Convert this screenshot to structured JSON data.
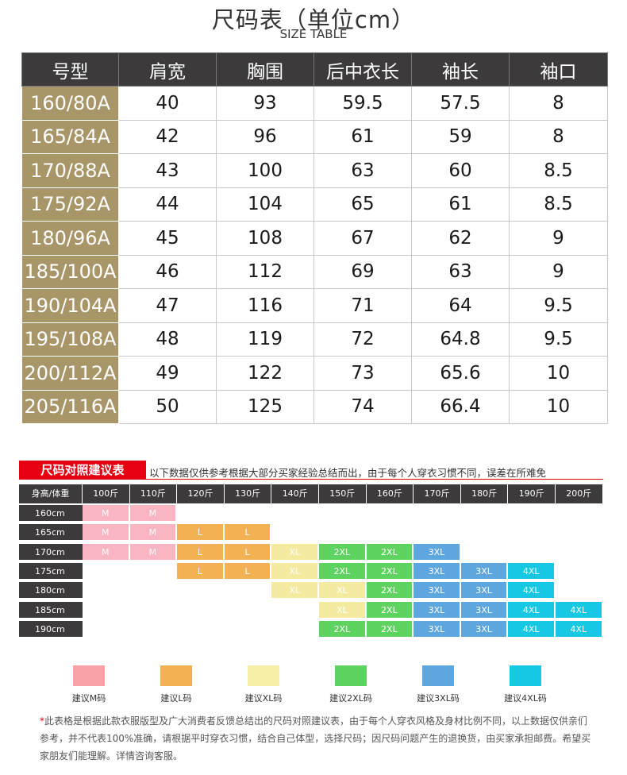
{
  "header": {
    "title": "尺码表（单位cm）",
    "subtitle": "SIZE TABLE"
  },
  "size_table": {
    "columns": [
      "号型",
      "肩宽",
      "胸围",
      "后中衣长",
      "袖长",
      "袖口"
    ],
    "rows": [
      [
        "160/80A",
        "40",
        "93",
        "59.5",
        "57.5",
        "8"
      ],
      [
        "165/84A",
        "42",
        "96",
        "61",
        "59",
        "8"
      ],
      [
        "170/88A",
        "43",
        "100",
        "63",
        "60",
        "8.5"
      ],
      [
        "175/92A",
        "44",
        "104",
        "65",
        "61",
        "8.5"
      ],
      [
        "180/96A",
        "45",
        "108",
        "67",
        "62",
        "9"
      ],
      [
        "185/100A",
        "46",
        "112",
        "69",
        "63",
        "9"
      ],
      [
        "190/104A",
        "47",
        "116",
        "71",
        "64",
        "9.5"
      ],
      [
        "195/108A",
        "48",
        "119",
        "72",
        "64.8",
        "9.5"
      ],
      [
        "200/112A",
        "49",
        "122",
        "73",
        "65.6",
        "10"
      ],
      [
        "205/116A",
        "50",
        "125",
        "74",
        "66.4",
        "10"
      ]
    ]
  },
  "recommend": {
    "title": "尺码对照建议表",
    "note": "以下数据仅供参考根据大部分买家经验总结而出，由于每个人穿衣习惯不同，误差在所难免",
    "corner": "身高/体重",
    "weights": [
      "100斤",
      "110斤",
      "120斤",
      "130斤",
      "140斤",
      "150斤",
      "160斤",
      "170斤",
      "180斤",
      "190斤",
      "200斤"
    ],
    "heights": [
      "160cm",
      "165cm",
      "170cm",
      "175cm",
      "180cm",
      "185cm",
      "190cm"
    ],
    "grid": [
      [
        "M",
        "M",
        "",
        "",
        "",
        "",
        "",
        "",
        "",
        "",
        ""
      ],
      [
        "M",
        "M",
        "L",
        "L",
        "",
        "",
        "",
        "",
        "",
        "",
        ""
      ],
      [
        "M",
        "M",
        "L",
        "L",
        "XL",
        "2XL",
        "2XL",
        "3XL",
        "",
        "",
        ""
      ],
      [
        "",
        "",
        "L",
        "L",
        "XL",
        "2XL",
        "2XL",
        "3XL",
        "3XL",
        "4XL",
        ""
      ],
      [
        "",
        "",
        "",
        "",
        "XL",
        "XL",
        "2XL",
        "3XL",
        "3XL",
        "4XL",
        ""
      ],
      [
        "",
        "",
        "",
        "",
        "",
        "XL",
        "2XL",
        "3XL",
        "3XL",
        "4XL",
        "4XL"
      ],
      [
        "",
        "",
        "",
        "",
        "",
        "2XL",
        "2XL",
        "3XL",
        "3XL",
        "4XL",
        "4XL"
      ]
    ],
    "colors": {
      "M": "#f9b5c2",
      "L": "#f2b152",
      "XL": "#f5eba0",
      "2XL": "#5fd35f",
      "3XL": "#5ea6de",
      "4XL": "#16c8e4"
    },
    "legend": [
      {
        "label": "建议M码",
        "color": "#f9a3a8"
      },
      {
        "label": "建议L码",
        "color": "#f2b152"
      },
      {
        "label": "建议XL码",
        "color": "#f6eea6"
      },
      {
        "label": "建议2XL码",
        "color": "#5fd35f"
      },
      {
        "label": "建议3XL码",
        "color": "#5ea6de"
      },
      {
        "label": "建议4XL码",
        "color": "#16c8e4"
      }
    ]
  },
  "footer": {
    "star": "*",
    "text": "此表格是根据此款衣服版型及广大消费者反馈总结出的尺码对照建议表，由于每个人穿衣风格及身材比例不同，以上数据仅供亲们参考，并不代表100%准确，请根据平时穿衣习惯，结合自己体型，选择尺码；因尺码问题产生的退换货，由买家承担邮费。希望买家朋友们能理解。详情咨询客服。"
  }
}
